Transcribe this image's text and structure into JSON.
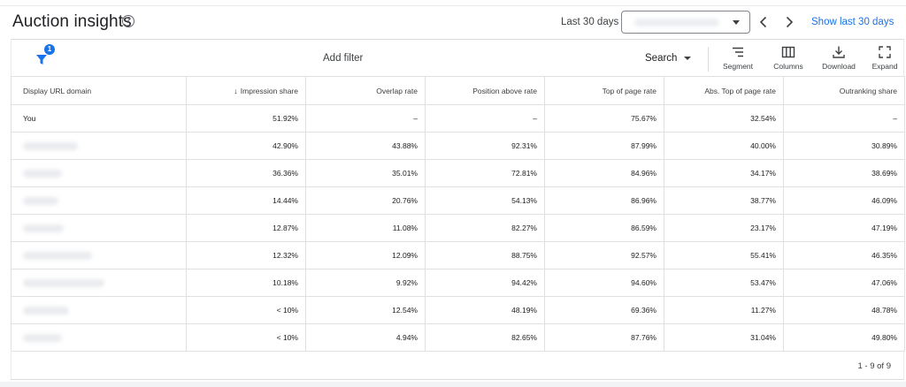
{
  "header": {
    "title": "Auction insights",
    "date_label": "Last 30 days",
    "date_range_value": "",
    "show_last_label": "Show last 30 days"
  },
  "toolbar": {
    "filter_badge_count": "1",
    "add_filter_label": "Add filter",
    "network_select": "Search",
    "buttons": [
      {
        "label": "Segment",
        "icon": "segment-icon"
      },
      {
        "label": "Columns",
        "icon": "columns-icon"
      },
      {
        "label": "Download",
        "icon": "download-icon"
      },
      {
        "label": "Expand",
        "icon": "expand-icon"
      }
    ]
  },
  "table": {
    "columns": [
      "Display URL domain",
      "Impression share",
      "Overlap rate",
      "Position above rate",
      "Top of page rate",
      "Abs. Top of page rate",
      "Outranking share"
    ],
    "sorted_column": "Impression share",
    "rows": [
      {
        "domain": "You",
        "blurred": false,
        "cells": [
          "51.92%",
          "–",
          "–",
          "75.67%",
          "32.54%",
          "–"
        ]
      },
      {
        "domain": "",
        "blurred": true,
        "cells": [
          "42.90%",
          "43.88%",
          "92.31%",
          "87.99%",
          "40.00%",
          "30.89%"
        ]
      },
      {
        "domain": "",
        "blurred": true,
        "cells": [
          "36.36%",
          "35.01%",
          "72.81%",
          "84.96%",
          "34.17%",
          "38.69%"
        ]
      },
      {
        "domain": "",
        "blurred": true,
        "cells": [
          "14.44%",
          "20.76%",
          "54.13%",
          "86.96%",
          "38.77%",
          "46.09%"
        ]
      },
      {
        "domain": "",
        "blurred": true,
        "cells": [
          "12.87%",
          "11.08%",
          "82.27%",
          "86.59%",
          "23.17%",
          "47.19%"
        ]
      },
      {
        "domain": "",
        "blurred": true,
        "cells": [
          "12.32%",
          "12.09%",
          "88.75%",
          "92.57%",
          "55.41%",
          "46.35%"
        ]
      },
      {
        "domain": "",
        "blurred": true,
        "cells": [
          "10.18%",
          "9.92%",
          "94.42%",
          "94.60%",
          "53.47%",
          "47.06%"
        ]
      },
      {
        "domain": "",
        "blurred": true,
        "cells": [
          "< 10%",
          "12.54%",
          "48.19%",
          "69.36%",
          "11.27%",
          "48.78%"
        ]
      },
      {
        "domain": "",
        "blurred": true,
        "cells": [
          "< 10%",
          "4.94%",
          "82.65%",
          "87.76%",
          "31.04%",
          "49.80%"
        ]
      }
    ]
  },
  "footer": {
    "pagination": "1 - 9 of 9"
  },
  "colors": {
    "accent": "#1a73e8",
    "border": "#e0e0e0",
    "text": "#202124"
  }
}
